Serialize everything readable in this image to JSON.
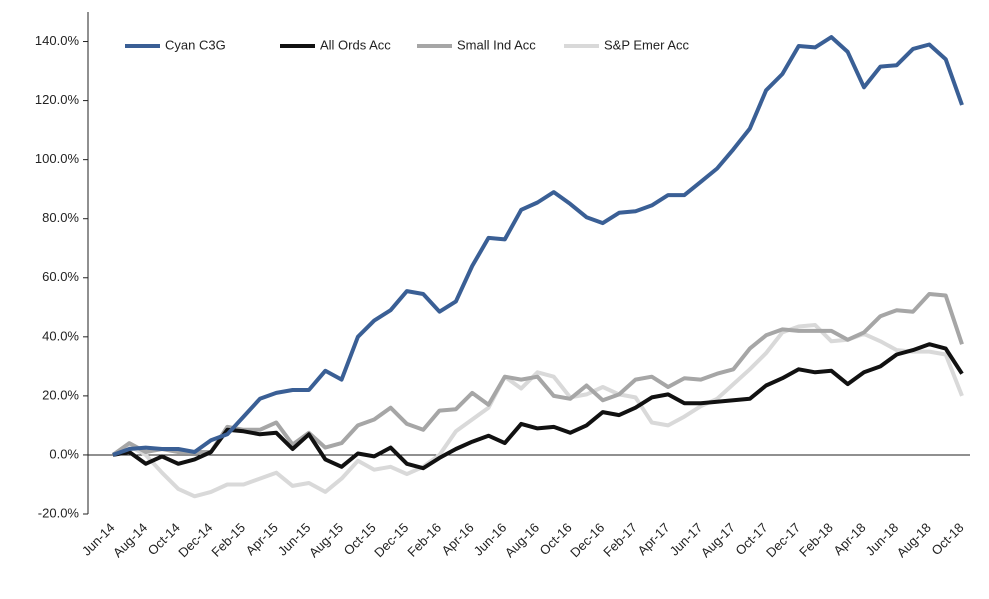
{
  "chart_data": {
    "type": "line",
    "categories": [
      "Jun-14",
      null,
      "Aug-14",
      null,
      "Oct-14",
      null,
      "Dec-14",
      null,
      "Feb-15",
      null,
      "Apr-15",
      null,
      "Jun-15",
      null,
      "Aug-15",
      null,
      "Oct-15",
      null,
      "Dec-15",
      null,
      "Feb-16",
      null,
      "Apr-16",
      null,
      "Jun-16",
      null,
      "Aug-16",
      null,
      "Oct-16",
      null,
      "Dec-16",
      null,
      "Feb-17",
      null,
      "Apr-17",
      null,
      "Jun-17",
      null,
      "Aug-17",
      null,
      "Oct-17",
      null,
      "Dec-17",
      null,
      "Feb-18",
      null,
      "Apr-18",
      null,
      "Jun-18",
      null,
      "Aug-18",
      null,
      "Oct-18"
    ],
    "series": [
      {
        "name": "Cyan C3G",
        "color": "#3a5f95",
        "values": [
          0,
          2,
          2.5,
          2,
          2,
          1,
          5,
          7,
          13,
          19,
          21,
          22,
          22,
          28.5,
          25.5,
          40,
          45.5,
          49,
          55.5,
          54.5,
          48.5,
          52,
          64,
          73.5,
          73,
          83,
          85.5,
          89,
          85,
          80.5,
          78.5,
          82,
          82.5,
          84.5,
          88,
          88,
          92.5,
          97,
          103.5,
          110.5,
          123.5,
          129,
          138.5,
          138,
          141.5,
          136.5,
          124.5,
          131.5,
          132,
          137.5,
          139,
          134,
          118.5
        ]
      },
      {
        "name": "All Ords Acc",
        "color": "#111111",
        "values": [
          0,
          1,
          -3,
          -0.5,
          -3,
          -1.5,
          1,
          8.5,
          8,
          7,
          7.5,
          2,
          7,
          -1.5,
          -4,
          0.5,
          -0.5,
          2.5,
          -3,
          -4.5,
          -1,
          2,
          4.5,
          6.5,
          4,
          10.5,
          9,
          9.5,
          7.5,
          10,
          14.5,
          13.5,
          16,
          19.5,
          20.5,
          17.5,
          17.5,
          18,
          18.5,
          19,
          23.5,
          26,
          29,
          28,
          28.5,
          24,
          28,
          30,
          34,
          35.5,
          37.5,
          36,
          27.5
        ]
      },
      {
        "name": "Small Ind Acc",
        "color": "#a6a6a6",
        "values": [
          0,
          4,
          1,
          2,
          1,
          1,
          1,
          9.5,
          8.5,
          8.5,
          11,
          3.5,
          7.5,
          2.5,
          4,
          10,
          12,
          16,
          10.5,
          8.5,
          15,
          15.5,
          21,
          17,
          26.5,
          25.5,
          26.5,
          20,
          19,
          23.5,
          18.5,
          20.5,
          25.5,
          26.5,
          23,
          26,
          25.5,
          27.5,
          29,
          36,
          40.5,
          42.5,
          42,
          42,
          42,
          39,
          41.5,
          47,
          49,
          48.5,
          54.5,
          54,
          37.5
        ]
      },
      {
        "name": "S&P Emer Acc",
        "color": "#d9d9d9",
        "values": [
          0,
          3,
          0,
          -6,
          -11.5,
          -14,
          -12.5,
          -10,
          -10,
          -8,
          -6,
          -10.5,
          -9.5,
          -12.5,
          -8,
          -2,
          -5,
          -4,
          -6.5,
          -4,
          0,
          8,
          12,
          16,
          26.5,
          22.5,
          28,
          26.5,
          19.5,
          20.5,
          23,
          20.5,
          19.5,
          11,
          10,
          13,
          16.5,
          19,
          24,
          29,
          34.5,
          41.5,
          43.5,
          44,
          38.5,
          39,
          41,
          38.5,
          35.5,
          35,
          35,
          34,
          20
        ]
      }
    ],
    "ylim": [
      -20,
      150
    ],
    "yticks": [
      {
        "value": -20,
        "label": "-20.0%"
      },
      {
        "value": 0,
        "label": "0.0%"
      },
      {
        "value": 20,
        "label": "20.0%"
      },
      {
        "value": 40,
        "label": "40.0%"
      },
      {
        "value": 60,
        "label": "60.0%"
      },
      {
        "value": 80,
        "label": "80.0%"
      },
      {
        "value": 100,
        "label": "100.0%"
      },
      {
        "value": 120,
        "label": "120.0%"
      },
      {
        "value": 140,
        "label": "140.0%"
      }
    ],
    "legend": "upper left"
  }
}
